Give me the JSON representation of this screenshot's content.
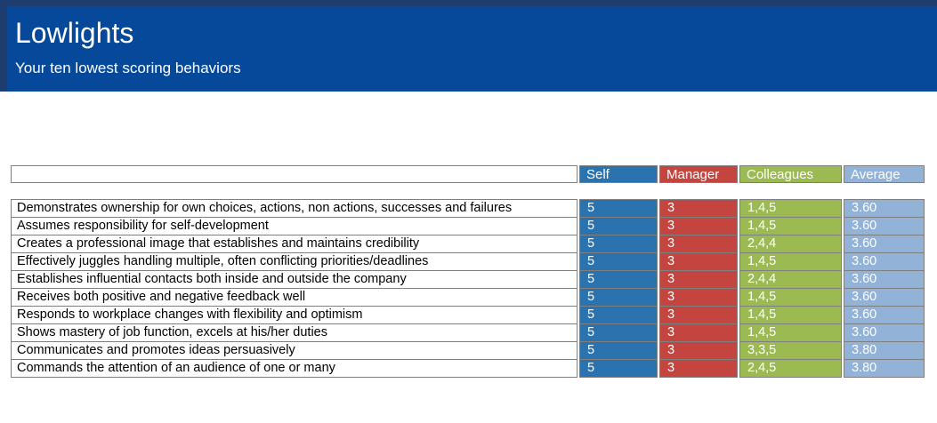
{
  "banner": {
    "title": "Lowlights",
    "subtitle": "Your ten lowest scoring behaviors"
  },
  "table": {
    "columns": [
      {
        "key": "self",
        "label": "Self"
      },
      {
        "key": "manager",
        "label": "Manager"
      },
      {
        "key": "colleagues",
        "label": "Colleagues"
      },
      {
        "key": "average",
        "label": "Average"
      }
    ],
    "rows": [
      {
        "behavior": "Demonstrates ownership for own choices, actions, non actions, successes and failures",
        "self": "5",
        "manager": "3",
        "colleagues": "1,4,5",
        "average": "3.60"
      },
      {
        "behavior": "Assumes responsibility for self-development",
        "self": "5",
        "manager": "3",
        "colleagues": "1,4,5",
        "average": "3.60"
      },
      {
        "behavior": "Creates a professional image that establishes and maintains credibility",
        "self": "5",
        "manager": "3",
        "colleagues": "2,4,4",
        "average": "3.60"
      },
      {
        "behavior": "Effectively juggles handling multiple, often conflicting priorities/deadlines",
        "self": "5",
        "manager": "3",
        "colleagues": "1,4,5",
        "average": "3.60"
      },
      {
        "behavior": "Establishes influential contacts both inside and outside the company",
        "self": "5",
        "manager": "3",
        "colleagues": "2,4,4",
        "average": "3.60"
      },
      {
        "behavior": "Receives both positive and negative feedback well",
        "self": "5",
        "manager": "3",
        "colleagues": "1,4,5",
        "average": "3.60"
      },
      {
        "behavior": "Responds to workplace changes with flexibility and optimism",
        "self": "5",
        "manager": "3",
        "colleagues": "1,4,5",
        "average": "3.60"
      },
      {
        "behavior": "Shows mastery of job function, excels at his/her duties",
        "self": "5",
        "manager": "3",
        "colleagues": "1,4,5",
        "average": "3.60"
      },
      {
        "behavior": "Communicates and promotes ideas persuasively",
        "self": "5",
        "manager": "3",
        "colleagues": "3,3,5",
        "average": "3.80"
      },
      {
        "behavior": "Commands the attention of an audience of one or many",
        "self": "5",
        "manager": "3",
        "colleagues": "2,4,5",
        "average": "3.80"
      }
    ]
  },
  "colors": {
    "banner-bg": "#06499a",
    "banner-border": "#1e3c6d",
    "self-blue": "#2b73af",
    "manager-red": "#c4453f",
    "colleagues-green": "#9bba52",
    "average-blue": "#92b2d8",
    "grid-gray": "#7f7f7f",
    "text-white": "#ffffff"
  }
}
